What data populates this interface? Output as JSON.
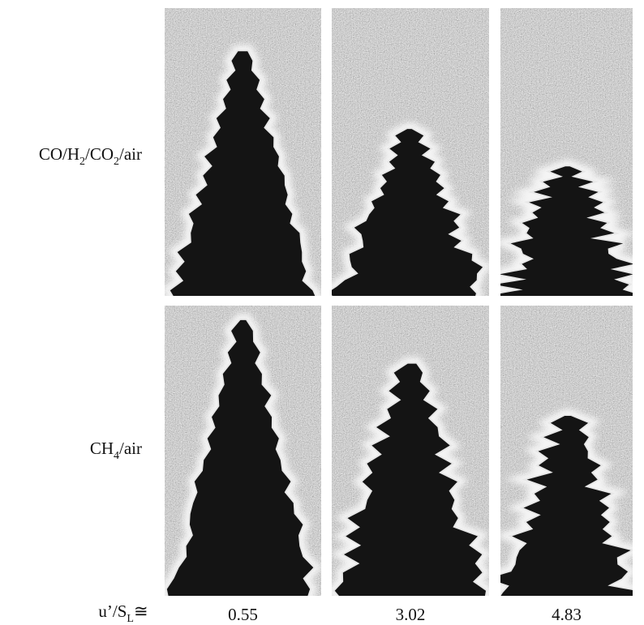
{
  "rows": [
    {
      "label": [
        {
          "text": "CO/H"
        },
        {
          "text": "2",
          "sub": true
        },
        {
          "text": "/CO"
        },
        {
          "text": "2",
          "sub": true
        },
        {
          "text": "/air"
        }
      ]
    },
    {
      "label": [
        {
          "text": "CH"
        },
        {
          "text": "4",
          "sub": true
        },
        {
          "text": "/air"
        }
      ]
    }
  ],
  "columns": [
    {
      "label": "0.55"
    },
    {
      "label": "3.02"
    },
    {
      "label": "4.83"
    }
  ],
  "x_label": [
    {
      "text": "u’/S"
    },
    {
      "text": "L",
      "sub": true
    },
    {
      "text": "≅"
    }
  ]
}
